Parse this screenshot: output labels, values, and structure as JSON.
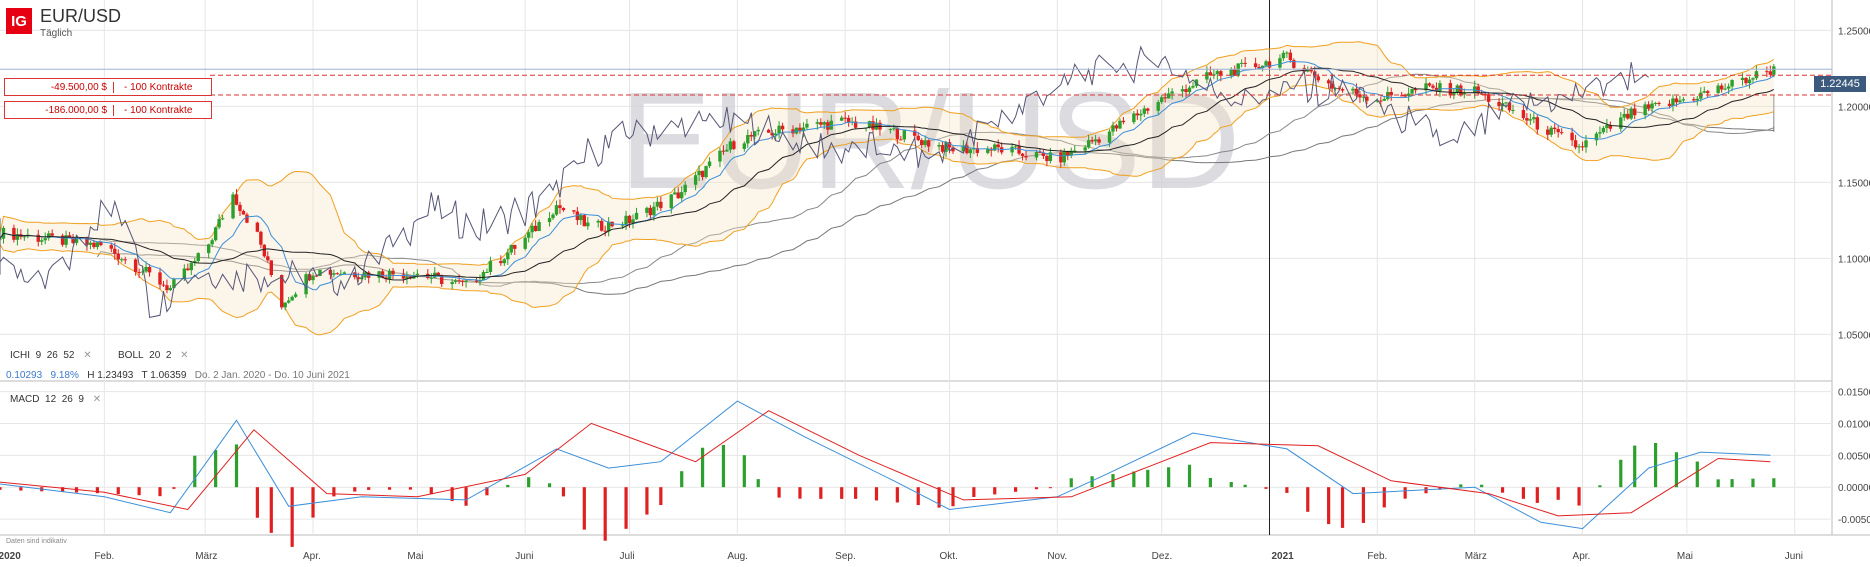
{
  "header": {
    "logo": "IG",
    "symbol": "EUR/USD",
    "timeframe": "Täglich",
    "watermark": "EUR/USD"
  },
  "orders": [
    {
      "amount": "-49.500,00 $",
      "contracts": "- 100 Kontrakte",
      "price": 1.2205
    },
    {
      "amount": "-186.000,00 $",
      "contracts": "- 100 Kontrakte",
      "price": 1.2075
    }
  ],
  "current_price": "1.22445",
  "indicators": {
    "ichi": {
      "name": "ICHI",
      "p1": "9",
      "p2": "26",
      "p3": "52"
    },
    "boll": {
      "name": "BOLL",
      "p1": "20",
      "p2": "2"
    },
    "macd": {
      "name": "MACD",
      "p1": "12",
      "p2": "26",
      "p3": "9"
    },
    "close_icon": "close-icon"
  },
  "stats": {
    "change": "0.10293",
    "change_pct": "9.18%",
    "high_label": "H",
    "high": "1.23493",
    "low_label": "T",
    "low": "1.06359",
    "range": "Do. 2 Jan. 2020 - Do. 10 Juni 2021"
  },
  "footer_note": "Daten sind indikativ",
  "colors": {
    "up": "#2ca02c",
    "down": "#e02020",
    "macd_line": "#3b8fd9",
    "signal_line": "#e02020",
    "boll": "#f0a020",
    "ichi": "#555577"
  },
  "chart_data": [
    {
      "type": "candlestick",
      "title": "EUR/USD",
      "x_start": "2020-01-02",
      "x_end": "2021-06-10",
      "ylim": [
        1.02,
        1.27
      ],
      "y_ticks": [
        "1.25000",
        "1.20000",
        "1.15000",
        "1.10000",
        "1.05000"
      ],
      "x_ticks": [
        {
          "label": "2020",
          "date": "2020-01-01"
        },
        {
          "label": "Feb.",
          "date": "2020-02-01"
        },
        {
          "label": "März",
          "date": "2020-03-01"
        },
        {
          "label": "Apr.",
          "date": "2020-04-01"
        },
        {
          "label": "Mai",
          "date": "2020-05-01"
        },
        {
          "label": "Juni",
          "date": "2020-06-01"
        },
        {
          "label": "Juli",
          "date": "2020-07-01"
        },
        {
          "label": "Aug.",
          "date": "2020-08-01"
        },
        {
          "label": "Sep.",
          "date": "2020-09-01"
        },
        {
          "label": "Okt.",
          "date": "2020-10-01"
        },
        {
          "label": "Nov.",
          "date": "2020-11-01"
        },
        {
          "label": "Dez.",
          "date": "2020-12-01"
        },
        {
          "label": "2021",
          "date": "2021-01-01"
        },
        {
          "label": "Feb.",
          "date": "2021-02-01"
        },
        {
          "label": "März",
          "date": "2021-03-01"
        },
        {
          "label": "Apr.",
          "date": "2021-04-01"
        },
        {
          "label": "Mai",
          "date": "2021-05-01"
        },
        {
          "label": "Juni",
          "date": "2021-06-01"
        }
      ],
      "closes": [
        {
          "date": "2020-01-02",
          "value": 1.117
        },
        {
          "date": "2020-01-15",
          "value": 1.113
        },
        {
          "date": "2020-02-01",
          "value": 1.108
        },
        {
          "date": "2020-02-10",
          "value": 1.095
        },
        {
          "date": "2020-02-20",
          "value": 1.08
        },
        {
          "date": "2020-03-01",
          "value": 1.105
        },
        {
          "date": "2020-03-09",
          "value": 1.142
        },
        {
          "date": "2020-03-16",
          "value": 1.115
        },
        {
          "date": "2020-03-23",
          "value": 1.07
        },
        {
          "date": "2020-04-01",
          "value": 1.092
        },
        {
          "date": "2020-04-15",
          "value": 1.09
        },
        {
          "date": "2020-05-01",
          "value": 1.09
        },
        {
          "date": "2020-05-15",
          "value": 1.082
        },
        {
          "date": "2020-06-01",
          "value": 1.113
        },
        {
          "date": "2020-06-10",
          "value": 1.135
        },
        {
          "date": "2020-06-20",
          "value": 1.12
        },
        {
          "date": "2020-07-01",
          "value": 1.125
        },
        {
          "date": "2020-07-15",
          "value": 1.142
        },
        {
          "date": "2020-08-01",
          "value": 1.178
        },
        {
          "date": "2020-08-15",
          "value": 1.185
        },
        {
          "date": "2020-09-01",
          "value": 1.19
        },
        {
          "date": "2020-09-15",
          "value": 1.183
        },
        {
          "date": "2020-10-01",
          "value": 1.172
        },
        {
          "date": "2020-10-15",
          "value": 1.172
        },
        {
          "date": "2020-11-01",
          "value": 1.165
        },
        {
          "date": "2020-11-15",
          "value": 1.182
        },
        {
          "date": "2020-12-01",
          "value": 1.205
        },
        {
          "date": "2020-12-15",
          "value": 1.22
        },
        {
          "date": "2021-01-06",
          "value": 1.232
        },
        {
          "date": "2021-01-20",
          "value": 1.212
        },
        {
          "date": "2021-02-01",
          "value": 1.205
        },
        {
          "date": "2021-02-15",
          "value": 1.212
        },
        {
          "date": "2021-03-01",
          "value": 1.21
        },
        {
          "date": "2021-03-15",
          "value": 1.193
        },
        {
          "date": "2021-03-31",
          "value": 1.173
        },
        {
          "date": "2021-04-15",
          "value": 1.195
        },
        {
          "date": "2021-05-01",
          "value": 1.205
        },
        {
          "date": "2021-05-15",
          "value": 1.215
        },
        {
          "date": "2021-05-25",
          "value": 1.224
        }
      ]
    },
    {
      "type": "bar",
      "title": "MACD",
      "ylim": [
        -0.0075,
        0.0165
      ],
      "y_ticks": [
        "0.01500",
        "0.01000",
        "0.00500",
        "0.00000",
        "-0.00500"
      ],
      "macd_line": [
        {
          "date": "2020-01-02",
          "value": 0.0005
        },
        {
          "date": "2020-02-01",
          "value": -0.0015
        },
        {
          "date": "2020-02-20",
          "value": -0.004
        },
        {
          "date": "2020-03-10",
          "value": 0.0105
        },
        {
          "date": "2020-03-25",
          "value": -0.003
        },
        {
          "date": "2020-04-15",
          "value": -0.0015
        },
        {
          "date": "2020-05-15",
          "value": -0.002
        },
        {
          "date": "2020-06-10",
          "value": 0.006
        },
        {
          "date": "2020-06-25",
          "value": 0.003
        },
        {
          "date": "2020-07-10",
          "value": 0.004
        },
        {
          "date": "2020-08-01",
          "value": 0.0135
        },
        {
          "date": "2020-08-20",
          "value": 0.008
        },
        {
          "date": "2020-09-15",
          "value": 0.001
        },
        {
          "date": "2020-10-01",
          "value": -0.0035
        },
        {
          "date": "2020-11-01",
          "value": -0.0015
        },
        {
          "date": "2020-11-15",
          "value": 0.002
        },
        {
          "date": "2020-12-10",
          "value": 0.0085
        },
        {
          "date": "2021-01-06",
          "value": 0.006
        },
        {
          "date": "2021-01-25",
          "value": -0.001
        },
        {
          "date": "2021-03-01",
          "value": 0.0
        },
        {
          "date": "2021-03-20",
          "value": -0.0055
        },
        {
          "date": "2021-04-01",
          "value": -0.0065
        },
        {
          "date": "2021-04-20",
          "value": 0.003
        },
        {
          "date": "2021-05-05",
          "value": 0.0055
        },
        {
          "date": "2021-05-25",
          "value": 0.005
        }
      ],
      "signal_line": [
        {
          "date": "2020-01-02",
          "value": 0.0008
        },
        {
          "date": "2020-02-01",
          "value": -0.0008
        },
        {
          "date": "2020-02-25",
          "value": -0.0035
        },
        {
          "date": "2020-03-15",
          "value": 0.009
        },
        {
          "date": "2020-04-05",
          "value": -0.001
        },
        {
          "date": "2020-05-01",
          "value": -0.0015
        },
        {
          "date": "2020-06-01",
          "value": 0.002
        },
        {
          "date": "2020-06-20",
          "value": 0.01
        },
        {
          "date": "2020-07-20",
          "value": 0.004
        },
        {
          "date": "2020-08-10",
          "value": 0.012
        },
        {
          "date": "2020-09-05",
          "value": 0.005
        },
        {
          "date": "2020-10-05",
          "value": -0.002
        },
        {
          "date": "2020-11-05",
          "value": -0.0015
        },
        {
          "date": "2020-12-15",
          "value": 0.007
        },
        {
          "date": "2021-01-15",
          "value": 0.0065
        },
        {
          "date": "2021-02-05",
          "value": 0.001
        },
        {
          "date": "2021-03-05",
          "value": -0.001
        },
        {
          "date": "2021-03-25",
          "value": -0.0045
        },
        {
          "date": "2021-04-15",
          "value": -0.004
        },
        {
          "date": "2021-05-10",
          "value": 0.0045
        },
        {
          "date": "2021-05-25",
          "value": 0.004
        }
      ]
    }
  ]
}
